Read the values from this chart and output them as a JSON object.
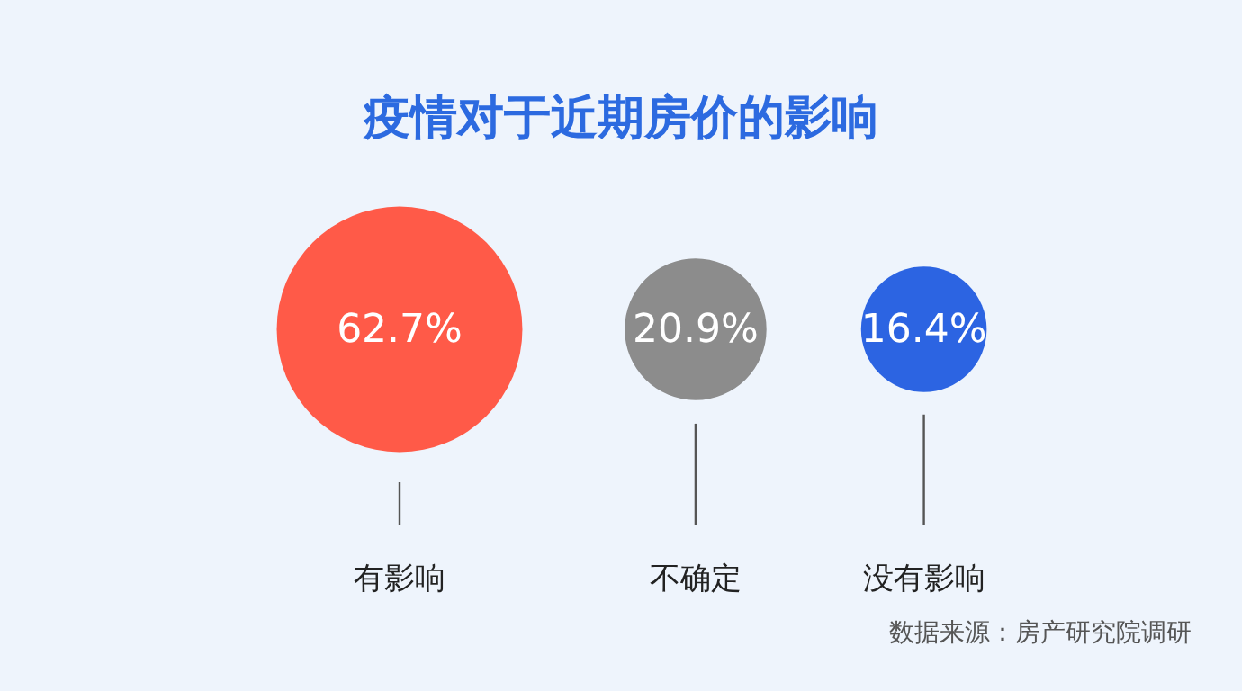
{
  "chart_data": {
    "type": "other",
    "title": "疫情对于近期房价的影响",
    "categories": [
      "有影响",
      "不确定",
      "没有影响"
    ],
    "values": [
      62.7,
      20.9,
      16.4
    ],
    "value_labels": [
      "62.7%",
      "20.9%",
      "16.4%"
    ],
    "colors": [
      "#ff5a48",
      "#8c8c8c",
      "#2c64e2"
    ],
    "annotations": [
      "数据来源：房产研究院调研"
    ]
  }
}
